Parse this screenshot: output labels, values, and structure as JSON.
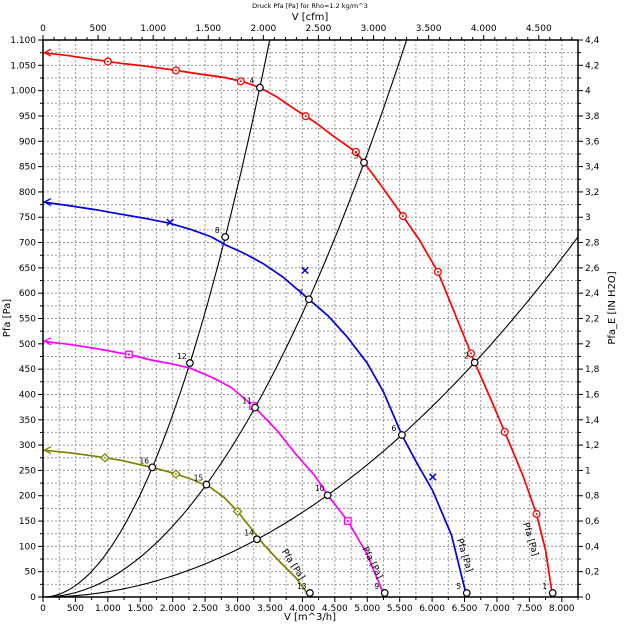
{
  "title": "Druck Pfa [Pa] for Rho=1.2 kg/m^3",
  "chart_data": {
    "type": "line",
    "title": "Druck Pfa [Pa] for Rho=1.2 kg/m^3",
    "plot": {
      "l": 43,
      "t": 40,
      "r": 578,
      "b": 597
    },
    "grid": {
      "color": "#999999",
      "dash": "2,2",
      "on": true
    },
    "axes": {
      "x": {
        "label": "V [m^3/h]",
        "min": 0,
        "max": 8250,
        "major": 500,
        "minor": 250,
        "tick_labels": [
          "0",
          "500",
          "1.000",
          "1.500",
          "2.000",
          "2.500",
          "3.000",
          "3.500",
          "4.000",
          "4.500",
          "5.000",
          "5.500",
          "6.000",
          "6.500",
          "7.000",
          "7.500",
          "8.000"
        ]
      },
      "x_top": {
        "label": "V [cfm]",
        "min": 0,
        "major": 500,
        "minor": 100,
        "m3h_per_cfm": 1.699,
        "tick_labels": [
          "0",
          "500",
          "1.000",
          "1.500",
          "2.000",
          "2.500",
          "3.000",
          "3.500",
          "4.000",
          "4.500"
        ]
      },
      "y": {
        "label": "Pfa [Pa]",
        "min": 0,
        "max": 1100,
        "major": 50,
        "minor": 25,
        "tick_labels": [
          "0",
          "50",
          "100",
          "150",
          "200",
          "250",
          "300",
          "350",
          "400",
          "450",
          "500",
          "550",
          "600",
          "650",
          "700",
          "750",
          "800",
          "850",
          "900",
          "950",
          "1.000",
          "1.050",
          "1.100"
        ]
      },
      "y_right": {
        "label": "Pfa_E [IN H2O]",
        "min": 0,
        "max": 4.4,
        "major": 0.2,
        "minor": 0.1,
        "tick_labels": [
          "0",
          "0,2",
          "0,4",
          "0,6",
          "0,8",
          "1",
          "1,2",
          "1,4",
          "1,6",
          "1,8",
          "2",
          "2,2",
          "2,4",
          "2,6",
          "2,8",
          "3",
          "3,2",
          "3,4",
          "3,6",
          "3,8",
          "4",
          "4,2",
          "4,4"
        ]
      }
    },
    "series": [
      {
        "name": "fan-curve-1",
        "color": "#ff0000",
        "marker": "circle",
        "curve_label": "Pfa [Pa]",
        "label_pos": {
          "x": 528,
          "y": 540,
          "angle": 73
        },
        "points": [
          [
            0,
            1075
          ],
          [
            400,
            1069
          ],
          [
            800,
            1061
          ],
          [
            1200,
            1054
          ],
          [
            1600,
            1048
          ],
          [
            2000,
            1041
          ],
          [
            2400,
            1033
          ],
          [
            2800,
            1026
          ],
          [
            3100,
            1017
          ],
          [
            3345,
            1006
          ],
          [
            3600,
            988
          ],
          [
            3900,
            962
          ],
          [
            4200,
            937
          ],
          [
            4500,
            908
          ],
          [
            4825,
            879
          ],
          [
            4950,
            858
          ],
          [
            5200,
            815
          ],
          [
            5530,
            756
          ],
          [
            5800,
            706
          ],
          [
            6090,
            642
          ],
          [
            6350,
            560
          ],
          [
            6657,
            463
          ],
          [
            6900,
            392
          ],
          [
            7120,
            326
          ],
          [
            7400,
            240
          ],
          [
            7610,
            164
          ],
          [
            7750,
            92
          ],
          [
            7860,
            0
          ]
        ],
        "marker_x": [
          1000,
          2050,
          3050,
          4050,
          4825,
          5550,
          6090,
          6600,
          7120,
          7610
        ]
      },
      {
        "name": "fan-curve-2",
        "color": "#0000dd",
        "marker": "x",
        "curve_label": "Pfa [Pa]",
        "label_pos": {
          "x": 462,
          "y": 556,
          "angle": 72
        },
        "points": [
          [
            0,
            780
          ],
          [
            400,
            773
          ],
          [
            800,
            765
          ],
          [
            1200,
            756
          ],
          [
            1600,
            747
          ],
          [
            1960,
            738
          ],
          [
            2300,
            725
          ],
          [
            2600,
            711
          ],
          [
            2820,
            695
          ],
          [
            3100,
            679
          ],
          [
            3400,
            658
          ],
          [
            3700,
            632
          ],
          [
            4100,
            588
          ],
          [
            4400,
            555
          ],
          [
            4700,
            512
          ],
          [
            5000,
            462
          ],
          [
            5250,
            405
          ],
          [
            5535,
            320
          ],
          [
            5750,
            268
          ],
          [
            6010,
            210
          ],
          [
            6300,
            122
          ],
          [
            6535,
            0
          ]
        ],
        "marker_points": [
          [
            1960,
            740
          ],
          [
            4040,
            645
          ],
          [
            6010,
            237
          ]
        ]
      },
      {
        "name": "fan-curve-3",
        "color": "#ff00ff",
        "marker": "square",
        "curve_label": "Pfa [Pa]",
        "label_pos": {
          "x": 370,
          "y": 564,
          "angle": 63
        },
        "points": [
          [
            0,
            505
          ],
          [
            400,
            499
          ],
          [
            800,
            491
          ],
          [
            1325,
            479
          ],
          [
            1700,
            467
          ],
          [
            2000,
            460
          ],
          [
            2266,
            452
          ],
          [
            2600,
            434
          ],
          [
            2900,
            414
          ],
          [
            3270,
            374
          ],
          [
            3600,
            330
          ],
          [
            3900,
            282
          ],
          [
            4200,
            238
          ],
          [
            4390,
            201
          ],
          [
            4700,
            150
          ],
          [
            5000,
            84
          ],
          [
            5270,
            0
          ]
        ],
        "marker_x": [
          1325,
          3240,
          4700
        ]
      },
      {
        "name": "fan-curve-4",
        "color": "#808000",
        "marker": "diamond",
        "curve_label": "Pfa [Pa]",
        "label_pos": {
          "x": 291,
          "y": 566,
          "angle": 57
        },
        "points": [
          [
            0,
            290
          ],
          [
            400,
            285
          ],
          [
            800,
            278
          ],
          [
            1200,
            270
          ],
          [
            1685,
            256
          ],
          [
            2000,
            245
          ],
          [
            2300,
            232
          ],
          [
            2574,
            217
          ],
          [
            2800,
            196
          ],
          [
            3000,
            169
          ],
          [
            3200,
            137
          ],
          [
            3400,
            104
          ],
          [
            3650,
            70
          ],
          [
            3900,
            38
          ],
          [
            4115,
            0
          ]
        ],
        "marker_x": [
          955,
          2050,
          3000
        ]
      }
    ],
    "system_curves": [
      {
        "name": "system-curve-1",
        "k": 9e-05
      },
      {
        "name": "system-curve-2",
        "k": 3.5e-05
      },
      {
        "name": "system-curve-3",
        "k": 1.045e-05
      }
    ],
    "operating_points": [
      {
        "label": "4",
        "V": 3345,
        "P": 1006
      },
      {
        "label": "8",
        "V": 2810,
        "P": 711
      },
      {
        "label": "12",
        "V": 2265,
        "P": 462
      },
      {
        "label": "16",
        "V": 1685,
        "P": 256
      },
      {
        "label": "3",
        "V": 4950,
        "P": 858
      },
      {
        "label": "7",
        "V": 4100,
        "P": 588
      },
      {
        "label": "11",
        "V": 3270,
        "P": 374
      },
      {
        "label": "15",
        "V": 2520,
        "P": 222
      },
      {
        "label": "2",
        "V": 6657,
        "P": 463
      },
      {
        "label": "6",
        "V": 5535,
        "P": 320
      },
      {
        "label": "10",
        "V": 4390,
        "P": 201
      },
      {
        "label": "14",
        "V": 3300,
        "P": 114
      },
      {
        "label": "1",
        "V": 7860,
        "P": 8
      },
      {
        "label": "5",
        "V": 6535,
        "P": 8
      },
      {
        "label": "9",
        "V": 5270,
        "P": 8
      },
      {
        "label": "13",
        "V": 4115,
        "P": 8
      }
    ]
  }
}
